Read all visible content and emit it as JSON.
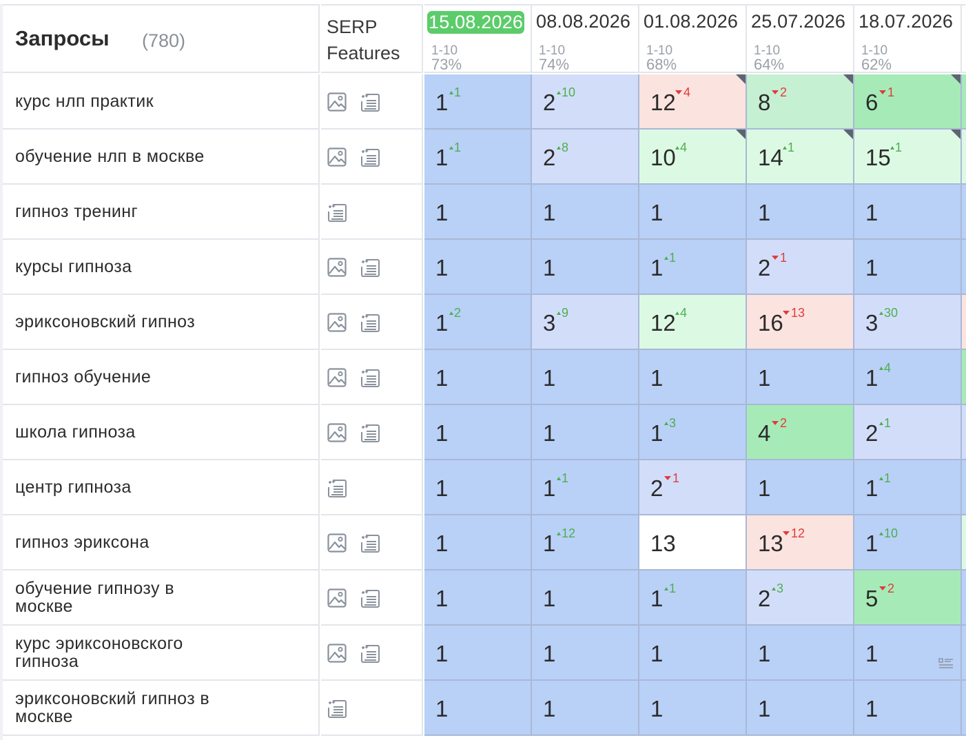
{
  "header": {
    "queries_title": "Запросы",
    "queries_count": "(780)",
    "serp_line1": "SERP",
    "serp_line2": "Features"
  },
  "dates": [
    {
      "date": "15.08.2026",
      "range": "1-10",
      "pct": "73%",
      "active": true
    },
    {
      "date": "08.08.2026",
      "range": "1-10",
      "pct": "74%",
      "active": false
    },
    {
      "date": "01.08.2026",
      "range": "1-10",
      "pct": "68%",
      "active": false
    },
    {
      "date": "25.07.2026",
      "range": "1-10",
      "pct": "64%",
      "active": false
    },
    {
      "date": "18.07.2026",
      "range": "1-10",
      "pct": "62%",
      "active": false
    }
  ],
  "colors": {
    "top1": "#b9d0f7",
    "top3": "#d2def9",
    "top10": "#c6f0d2",
    "top10_dark": "#a6ebb7",
    "top10_light": "#dcfae3",
    "drop": "#fbe3df",
    "none": "#ffffff",
    "active_date": "#5ccc6a"
  },
  "rows": [
    {
      "query": "курс нлп практик",
      "features": [
        "image-icon",
        "snippet-icon"
      ],
      "cells": [
        {
          "pos": "1",
          "chg": "1",
          "dir": "up",
          "bg": "top1"
        },
        {
          "pos": "2",
          "chg": "10",
          "dir": "up",
          "bg": "top3"
        },
        {
          "pos": "12",
          "chg": "4",
          "dir": "down",
          "bg": "drop",
          "corner": true
        },
        {
          "pos": "8",
          "chg": "2",
          "dir": "down",
          "bg": "top10",
          "corner": true
        },
        {
          "pos": "6",
          "chg": "1",
          "dir": "down",
          "bg": "top10_dark",
          "corner": true
        }
      ],
      "edge": "top10_dark"
    },
    {
      "query": "обучение нлп в москве",
      "features": [
        "image-icon",
        "snippet-icon"
      ],
      "cells": [
        {
          "pos": "1",
          "chg": "1",
          "dir": "up",
          "bg": "top1"
        },
        {
          "pos": "2",
          "chg": "8",
          "dir": "up",
          "bg": "top3"
        },
        {
          "pos": "10",
          "chg": "4",
          "dir": "up",
          "bg": "top10_light",
          "corner": true
        },
        {
          "pos": "14",
          "chg": "1",
          "dir": "up",
          "bg": "top10_light",
          "corner": true
        },
        {
          "pos": "15",
          "chg": "1",
          "dir": "up",
          "bg": "top10_light",
          "corner": true
        }
      ],
      "edge": "top10_light"
    },
    {
      "query": "гипноз тренинг",
      "features": [
        "snippet-icon"
      ],
      "cells": [
        {
          "pos": "1",
          "bg": "top1"
        },
        {
          "pos": "1",
          "bg": "top1"
        },
        {
          "pos": "1",
          "bg": "top1"
        },
        {
          "pos": "1",
          "bg": "top1"
        },
        {
          "pos": "1",
          "bg": "top1"
        }
      ],
      "edge": "top1"
    },
    {
      "query": "курсы гипноза",
      "features": [
        "image-icon",
        "snippet-icon"
      ],
      "cells": [
        {
          "pos": "1",
          "bg": "top1"
        },
        {
          "pos": "1",
          "bg": "top1"
        },
        {
          "pos": "1",
          "chg": "1",
          "dir": "up",
          "bg": "top1"
        },
        {
          "pos": "2",
          "chg": "1",
          "dir": "down",
          "bg": "top3"
        },
        {
          "pos": "1",
          "bg": "top1"
        }
      ],
      "edge": "top1"
    },
    {
      "query": "эриксоновский гипноз",
      "features": [
        "image-icon",
        "snippet-icon"
      ],
      "cells": [
        {
          "pos": "1",
          "chg": "2",
          "dir": "up",
          "bg": "top1"
        },
        {
          "pos": "3",
          "chg": "9",
          "dir": "up",
          "bg": "top3"
        },
        {
          "pos": "12",
          "chg": "4",
          "dir": "up",
          "bg": "top10_light"
        },
        {
          "pos": "16",
          "chg": "13",
          "dir": "down",
          "bg": "drop"
        },
        {
          "pos": "3",
          "chg": "30",
          "dir": "up",
          "bg": "top3"
        }
      ],
      "edge": "drop"
    },
    {
      "query": "гипноз обучение",
      "features": [
        "image-icon",
        "snippet-icon"
      ],
      "cells": [
        {
          "pos": "1",
          "bg": "top1"
        },
        {
          "pos": "1",
          "bg": "top1"
        },
        {
          "pos": "1",
          "bg": "top1"
        },
        {
          "pos": "1",
          "bg": "top1"
        },
        {
          "pos": "1",
          "chg": "4",
          "dir": "up",
          "bg": "top1"
        }
      ],
      "edge": "top10_dark"
    },
    {
      "query": "школа гипноза",
      "features": [
        "image-icon",
        "snippet-icon"
      ],
      "cells": [
        {
          "pos": "1",
          "bg": "top1"
        },
        {
          "pos": "1",
          "bg": "top1"
        },
        {
          "pos": "1",
          "chg": "3",
          "dir": "up",
          "bg": "top1"
        },
        {
          "pos": "4",
          "chg": "2",
          "dir": "down",
          "bg": "top10_dark"
        },
        {
          "pos": "2",
          "chg": "1",
          "dir": "up",
          "bg": "top3"
        }
      ],
      "edge": "top3"
    },
    {
      "query": "центр гипноза",
      "features": [
        "snippet-icon"
      ],
      "cells": [
        {
          "pos": "1",
          "bg": "top1"
        },
        {
          "pos": "1",
          "chg": "1",
          "dir": "up",
          "bg": "top1"
        },
        {
          "pos": "2",
          "chg": "1",
          "dir": "down",
          "bg": "top3"
        },
        {
          "pos": "1",
          "bg": "top1"
        },
        {
          "pos": "1",
          "chg": "1",
          "dir": "up",
          "bg": "top1"
        }
      ],
      "edge": "top1"
    },
    {
      "query": "гипноз эриксона",
      "features": [
        "image-icon",
        "snippet-icon"
      ],
      "cells": [
        {
          "pos": "1",
          "bg": "top1"
        },
        {
          "pos": "1",
          "chg": "12",
          "dir": "up",
          "bg": "top1"
        },
        {
          "pos": "13",
          "bg": "none"
        },
        {
          "pos": "13",
          "chg": "12",
          "dir": "down",
          "bg": "drop"
        },
        {
          "pos": "1",
          "chg": "10",
          "dir": "up",
          "bg": "top1"
        }
      ],
      "edge": "top10_light"
    },
    {
      "query": "обучение гипнозу в москве",
      "features": [
        "image-icon",
        "snippet-icon"
      ],
      "cells": [
        {
          "pos": "1",
          "bg": "top1"
        },
        {
          "pos": "1",
          "bg": "top1"
        },
        {
          "pos": "1",
          "chg": "1",
          "dir": "up",
          "bg": "top1"
        },
        {
          "pos": "2",
          "chg": "3",
          "dir": "up",
          "bg": "top3"
        },
        {
          "pos": "5",
          "chg": "2",
          "dir": "down",
          "bg": "top10_dark"
        }
      ],
      "edge": "top1"
    },
    {
      "query": "курс эриксоновского гипноза",
      "features": [
        "image-icon",
        "snippet-icon"
      ],
      "cells": [
        {
          "pos": "1",
          "bg": "top1"
        },
        {
          "pos": "1",
          "bg": "top1"
        },
        {
          "pos": "1",
          "bg": "top1"
        },
        {
          "pos": "1",
          "bg": "top1"
        },
        {
          "pos": "1",
          "bg": "top1",
          "list_icon": true
        }
      ],
      "edge": "top1"
    },
    {
      "query": "эриксоновский гипноз в москве",
      "features": [
        "snippet-icon"
      ],
      "cells": [
        {
          "pos": "1",
          "bg": "top1"
        },
        {
          "pos": "1",
          "bg": "top1"
        },
        {
          "pos": "1",
          "bg": "top1"
        },
        {
          "pos": "1",
          "bg": "top1"
        },
        {
          "pos": "1",
          "bg": "top1"
        }
      ],
      "edge": "top1"
    }
  ]
}
